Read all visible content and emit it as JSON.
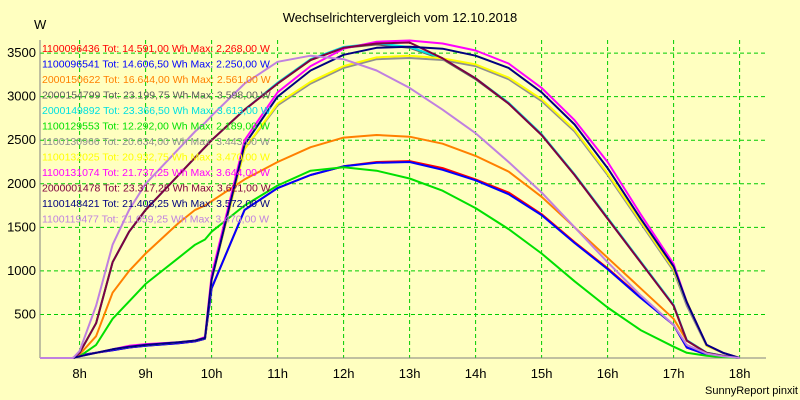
{
  "chart_data": {
    "type": "line",
    "title": "Wechselrichtervergleich vom 12.10.2018",
    "ylabel": "W",
    "xlabel": "",
    "footer": "SunnyReport pinxit",
    "background": "#ffffc0",
    "grid": true,
    "grid_color": "#00cc00",
    "xlim": [
      7.4,
      18.4
    ],
    "ylim": [
      0,
      3650
    ],
    "x_ticks": [
      8,
      9,
      10,
      11,
      12,
      13,
      14,
      15,
      16,
      17,
      18
    ],
    "x_tick_labels": [
      "8h",
      "9h",
      "10h",
      "11h",
      "12h",
      "13h",
      "14h",
      "15h",
      "16h",
      "17h",
      "18h"
    ],
    "y_ticks": [
      500,
      1000,
      1500,
      2000,
      2500,
      3000,
      3500
    ],
    "y_tick_labels": [
      "500",
      "1000",
      "1500",
      "2000",
      "2500",
      "3000",
      "3500"
    ],
    "legend_position": "top-left",
    "x": [
      7.4,
      7.9,
      8.0,
      8.25,
      8.5,
      8.75,
      9.0,
      9.5,
      9.75,
      9.9,
      10.0,
      10.5,
      11.0,
      11.5,
      12.0,
      12.5,
      13.0,
      13.5,
      14.0,
      14.5,
      15.0,
      15.5,
      16.0,
      16.5,
      17.0,
      17.2,
      17.5,
      17.75,
      18.0
    ],
    "series": [
      {
        "name": "1100096436 Tot: 14.591,00 Wh Max: 2.268,00 W",
        "color": "#ff0000",
        "values": [
          0,
          0,
          30,
          60,
          90,
          120,
          140,
          170,
          190,
          220,
          800,
          1700,
          1950,
          2100,
          2200,
          2250,
          2260,
          2180,
          2050,
          1900,
          1650,
          1330,
          1030,
          700,
          380,
          120,
          40,
          20,
          0
        ]
      },
      {
        "name": "1100096541 Tot: 14.606,50 Wh Max: 2.250,00 W",
        "color": "#0000ff",
        "values": [
          0,
          0,
          30,
          60,
          90,
          120,
          140,
          170,
          190,
          220,
          800,
          1700,
          1950,
          2100,
          2200,
          2240,
          2250,
          2160,
          2040,
          1880,
          1640,
          1320,
          1020,
          690,
          380,
          120,
          40,
          20,
          0
        ]
      },
      {
        "name": "2000150622 Tot: 16.644,00 Wh Max: 2.561,00 W",
        "color": "#ff8000",
        "values": [
          0,
          0,
          40,
          250,
          750,
          1000,
          1200,
          1550,
          1700,
          1750,
          1800,
          2050,
          2250,
          2420,
          2530,
          2560,
          2540,
          2460,
          2320,
          2140,
          1850,
          1500,
          1150,
          800,
          450,
          200,
          60,
          25,
          0
        ]
      },
      {
        "name": "2000154799 Tot: 23.199,75 Wh Max: 3.598,00 W",
        "color": "#606060",
        "values": [
          0,
          0,
          60,
          400,
          1100,
          1450,
          1700,
          2100,
          2300,
          2420,
          2500,
          2850,
          3150,
          3420,
          3560,
          3598,
          3560,
          3430,
          3200,
          2920,
          2560,
          2100,
          1600,
          1100,
          600,
          200,
          60,
          25,
          0
        ]
      },
      {
        "name": "2000149892 Tot: 23.366,50 Wh Max: 3.613,00 W",
        "color": "#00e0e0",
        "values": [
          0,
          0,
          60,
          400,
          1100,
          1450,
          1700,
          2100,
          2300,
          2420,
          2500,
          2850,
          3160,
          3430,
          3570,
          3613,
          3570,
          3440,
          3210,
          2930,
          2570,
          2110,
          1610,
          1110,
          610,
          205,
          62,
          26,
          0
        ]
      },
      {
        "name": "1100129553 Tot: 12.292,00 Wh Max: 2.189,00 W",
        "color": "#00e000",
        "values": [
          0,
          0,
          20,
          150,
          450,
          650,
          850,
          1150,
          1300,
          1360,
          1450,
          1750,
          1980,
          2150,
          2189,
          2150,
          2060,
          1920,
          1720,
          1480,
          1200,
          880,
          580,
          320,
          130,
          60,
          25,
          10,
          0
        ]
      },
      {
        "name": "1100130966 Tot: 20.634,00 Wh Max: 3.443,00 W",
        "color": "#909090",
        "values": [
          0,
          0,
          20,
          60,
          100,
          130,
          150,
          180,
          200,
          230,
          900,
          2400,
          2900,
          3150,
          3330,
          3430,
          3443,
          3420,
          3350,
          3200,
          2950,
          2600,
          2100,
          1550,
          1000,
          600,
          140,
          60,
          0
        ]
      },
      {
        "name": "1100132025 Tot: 20.932,75 Wh Max: 3.470,00 W",
        "color": "#ffff00",
        "values": [
          0,
          0,
          20,
          60,
          100,
          130,
          150,
          180,
          200,
          230,
          900,
          2400,
          2920,
          3170,
          3350,
          3450,
          3470,
          3440,
          3370,
          3220,
          2970,
          2620,
          2120,
          1570,
          1020,
          650,
          140,
          60,
          0
        ]
      },
      {
        "name": "1100131074 Tot: 21.737,25 Wh Max: 3.644,00 W",
        "color": "#ff00ff",
        "values": [
          0,
          0,
          20,
          60,
          100,
          140,
          160,
          180,
          200,
          240,
          950,
          2500,
          3050,
          3350,
          3550,
          3630,
          3644,
          3610,
          3530,
          3380,
          3100,
          2730,
          2250,
          1650,
          1080,
          640,
          150,
          60,
          0
        ]
      },
      {
        "name": "2000001478 Tot: 23.317,25 Wh Max: 3.621,00 W",
        "color": "#800040",
        "values": [
          0,
          0,
          60,
          400,
          1100,
          1450,
          1700,
          2100,
          2300,
          2420,
          2500,
          2850,
          3150,
          3420,
          3560,
          3610,
          3621,
          3440,
          3210,
          2920,
          2560,
          2100,
          1600,
          1100,
          600,
          200,
          60,
          25,
          0
        ]
      },
      {
        "name": "1100148421 Tot: 21.408,25 Wh Max: 3.572,00 W",
        "color": "#000080",
        "values": [
          0,
          0,
          20,
          60,
          100,
          130,
          150,
          180,
          200,
          230,
          900,
          2450,
          3000,
          3300,
          3480,
          3560,
          3572,
          3550,
          3470,
          3330,
          3050,
          2680,
          2180,
          1600,
          1050,
          640,
          150,
          60,
          0
        ]
      },
      {
        "name": "1100119477 Tot: 21.059,25 Wh Max: 3.470,00 W",
        "color": "#c080e0",
        "values": [
          0,
          0,
          80,
          600,
          1300,
          1700,
          2000,
          2400,
          2600,
          2700,
          2780,
          3150,
          3400,
          3470,
          3430,
          3300,
          3100,
          2850,
          2580,
          2250,
          1900,
          1500,
          1100,
          720,
          380,
          150,
          50,
          20,
          0
        ]
      }
    ]
  }
}
